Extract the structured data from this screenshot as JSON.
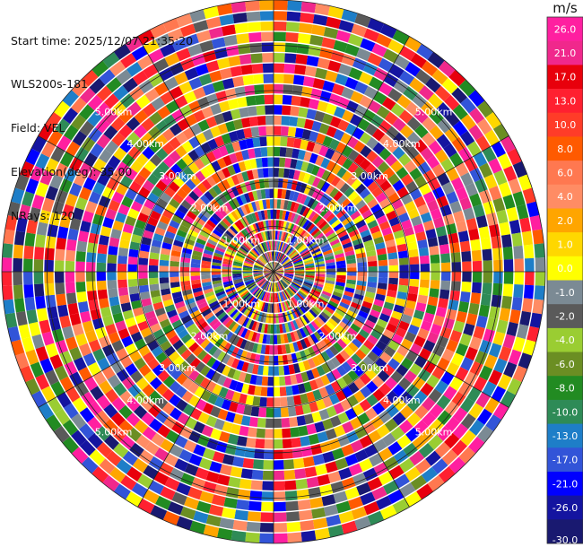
{
  "header": {
    "start_time": "Start time: 2025/12/07 21:35:20",
    "station": "WLS200s-181",
    "field": "Field: VEL",
    "elevation": "Elevation(deg): 35.00",
    "nrays": "NRays: 120"
  },
  "chart_data": {
    "type": "heatmap",
    "projection": "polar-ppi",
    "field": "VEL",
    "units": "m/s",
    "nrays": 120,
    "elevation_deg": 35.0,
    "range_rings_km": [
      1,
      2,
      3,
      4,
      5,
      6
    ],
    "ring_labels": [
      "1.00km",
      "2.00km",
      "3.00km",
      "4.00km",
      "5.00km",
      "6.00km"
    ],
    "spokes_deg": [
      0,
      30,
      60,
      90,
      120,
      150,
      180,
      210,
      240,
      270,
      300,
      330
    ],
    "colorbar": {
      "unit_label": "m/s",
      "ticks": [
        "26.0",
        "21.0",
        "17.0",
        "13.0",
        "10.0",
        "8.0",
        "6.0",
        "4.0",
        "2.0",
        "1.0",
        "0.0",
        "-1.0",
        "-2.0",
        "-4.0",
        "-6.0",
        "-8.0",
        "-10.0",
        "-13.0",
        "-17.0",
        "-21.0",
        "-26.0",
        "-30.0"
      ],
      "colors": [
        "#ff1fa0",
        "#f0288c",
        "#e8000c",
        "#ff2030",
        "#ff3c28",
        "#ff5a00",
        "#ff7850",
        "#ff8c64",
        "#ffa500",
        "#ffd700",
        "#ffff00",
        "#7b8a94",
        "#5a5a5a",
        "#9acd32",
        "#6b8e23",
        "#228b22",
        "#2e8b57",
        "#1e7ec8",
        "#3254d8",
        "#0000ff",
        "#1414a0",
        "#191970"
      ]
    }
  }
}
